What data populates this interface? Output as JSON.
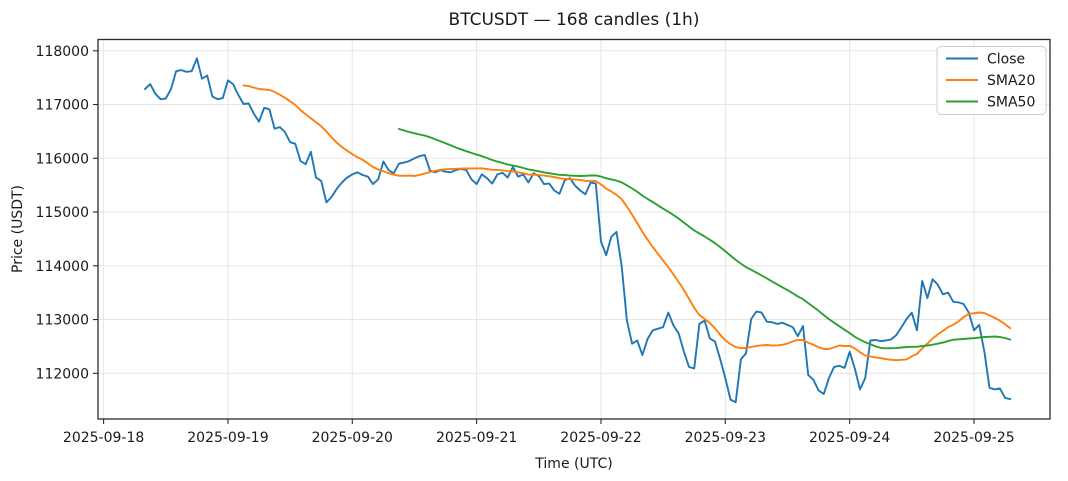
{
  "page": {
    "background": "#ffffff"
  },
  "chart_data": {
    "type": "line",
    "title": "BTCUSDT — 168 candles (1h)",
    "xlabel": "Time (UTC)",
    "ylabel": "Price (USDT)",
    "x_tick_labels": [
      "2025-09-18",
      "2025-09-19",
      "2025-09-20",
      "2025-09-21",
      "2025-09-22",
      "2025-09-23",
      "2025-09-24",
      "2025-09-25"
    ],
    "y_ticks": [
      112000,
      113000,
      114000,
      115000,
      116000,
      117000,
      118000
    ],
    "ylim": [
      111150,
      118210
    ],
    "candles": 168,
    "interval": "1h",
    "first_candle_hours_after_first_tick": 8,
    "hours_per_tick": 24,
    "grid": true,
    "legend_position": "upper right",
    "series": [
      {
        "name": "Close",
        "color": "#1f77b4",
        "values": [
          117290,
          117380,
          117200,
          117100,
          117110,
          117290,
          117620,
          117640,
          117610,
          117620,
          117860,
          117480,
          117540,
          117150,
          117100,
          117120,
          117450,
          117380,
          117180,
          117010,
          117020,
          116830,
          116680,
          116940,
          116910,
          116550,
          116580,
          116490,
          116300,
          116270,
          115950,
          115890,
          116120,
          115640,
          115580,
          115180,
          115280,
          115430,
          115550,
          115640,
          115700,
          115740,
          115690,
          115660,
          115520,
          115610,
          115940,
          115780,
          115720,
          115900,
          115920,
          115950,
          116000,
          116040,
          116060,
          115770,
          115740,
          115780,
          115750,
          115740,
          115780,
          115800,
          115780,
          115610,
          115520,
          115700,
          115630,
          115530,
          115700,
          115730,
          115640,
          115840,
          115660,
          115700,
          115550,
          115720,
          115670,
          115520,
          115530,
          115400,
          115340,
          115590,
          115630,
          115490,
          115400,
          115330,
          115550,
          115530,
          114450,
          114200,
          114540,
          114630,
          113990,
          112980,
          112550,
          112610,
          112340,
          112640,
          112800,
          112830,
          112860,
          113130,
          112890,
          112740,
          112400,
          112120,
          112090,
          112920,
          112980,
          112650,
          112590,
          112270,
          111910,
          111510,
          111460,
          112260,
          112370,
          113010,
          113150,
          113130,
          112960,
          112950,
          112920,
          112940,
          112900,
          112860,
          112690,
          112880,
          111970,
          111880,
          111680,
          111615,
          111910,
          112120,
          112140,
          112100,
          112400,
          112090,
          111700,
          111910,
          112610,
          112620,
          112600,
          112610,
          112630,
          112710,
          112860,
          113010,
          113130,
          112800,
          113720,
          113400,
          113750,
          113650,
          113470,
          113500,
          113330,
          113320,
          113290,
          113130,
          112800,
          112900,
          112400,
          111730,
          111700,
          111720,
          111540,
          111520
        ]
      },
      {
        "name": "SMA20",
        "color": "#ff7f0e",
        "derived": "sma",
        "window": 20
      },
      {
        "name": "SMA50",
        "color": "#2ca02c",
        "derived": "sma",
        "window": 50
      }
    ]
  }
}
